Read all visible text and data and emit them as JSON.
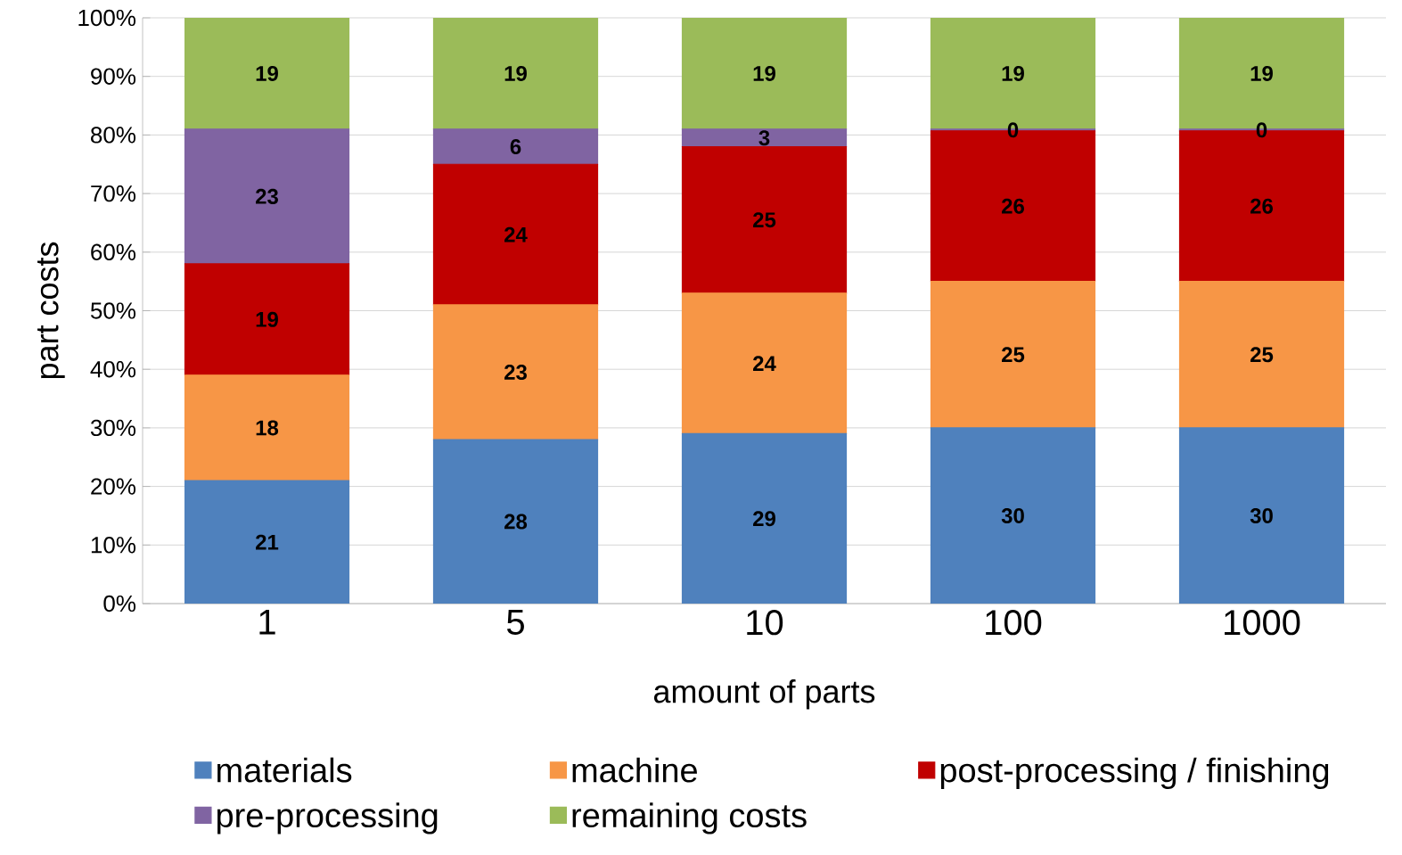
{
  "chart_data": {
    "type": "bar",
    "stacked": true,
    "xlabel": "amount of parts",
    "ylabel": "part costs",
    "categories": [
      "1",
      "5",
      "10",
      "100",
      "1000"
    ],
    "series": [
      {
        "name": "materials",
        "color": "#4f81bd",
        "values": [
          21,
          28,
          29,
          30,
          30
        ],
        "value_labels": [
          "21",
          "28",
          "29",
          "30",
          "30"
        ]
      },
      {
        "name": "machine",
        "color": "#f79646",
        "values": [
          18,
          23,
          24,
          25,
          25
        ],
        "value_labels": [
          "18",
          "23",
          "24",
          "25",
          "25"
        ]
      },
      {
        "name": "post-processing / finishing",
        "color": "#c00000",
        "values": [
          19,
          24,
          25,
          25.7,
          25.7
        ],
        "value_labels": [
          "19",
          "24",
          "25",
          "26",
          "26"
        ]
      },
      {
        "name": "pre-processing",
        "color": "#8064a2",
        "values": [
          23,
          6,
          3,
          0.3,
          0.3
        ],
        "value_labels": [
          "23",
          "6",
          "3",
          "0",
          "0"
        ]
      },
      {
        "name": "remaining costs",
        "color": "#9bbb59",
        "values": [
          19,
          19,
          19,
          19,
          19
        ],
        "value_labels": [
          "19",
          "19",
          "19",
          "19",
          "19"
        ]
      }
    ],
    "ylim": [
      0,
      100
    ],
    "yticks": [
      {
        "value": 0,
        "label": "0%"
      },
      {
        "value": 10,
        "label": "10%"
      },
      {
        "value": 20,
        "label": "20%"
      },
      {
        "value": 30,
        "label": "30%"
      },
      {
        "value": 40,
        "label": "40%"
      },
      {
        "value": 50,
        "label": "50%"
      },
      {
        "value": 60,
        "label": "60%"
      },
      {
        "value": 70,
        "label": "70%"
      },
      {
        "value": 80,
        "label": "80%"
      },
      {
        "value": 90,
        "label": "90%"
      },
      {
        "value": 100,
        "label": "100%"
      }
    ],
    "grid": "y",
    "legend": "bottom"
  }
}
